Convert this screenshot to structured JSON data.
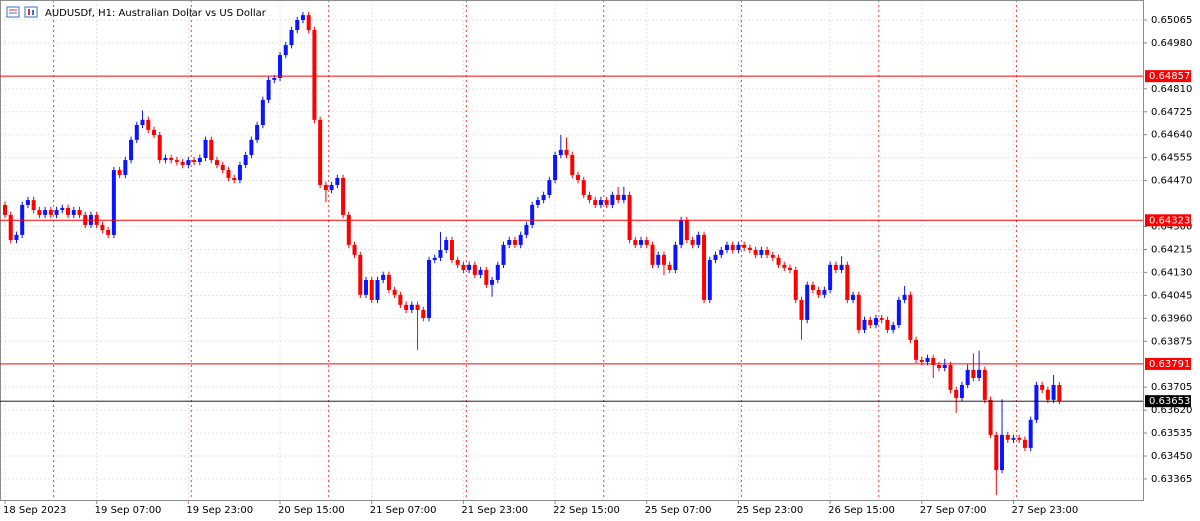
{
  "chart_data": {
    "type": "candlestick",
    "title": "AUDUSDf, H1:  Australian Dollar vs US Dollar",
    "up_color": "#0a14ff",
    "down_color": "#ff0000",
    "level_color": "#ff0000",
    "last_price_color": "#000000",
    "grid": true,
    "ylim": [
      0.63287,
      0.65139
    ],
    "yticks": [
      0.65065,
      {
        "value": 0.6498,
        "label": "0.64980"
      },
      {
        "value": 0.6481,
        "label": "0.64810"
      },
      0.64725,
      {
        "value": 0.6464,
        "label": "0.64640"
      },
      0.64555,
      {
        "value": 0.6447,
        "label": "0.64470"
      },
      {
        "value": 0.643,
        "label": "0.64300"
      },
      0.64215,
      {
        "value": 0.6413,
        "label": "0.64130"
      },
      0.64045,
      {
        "value": 0.6396,
        "label": "0.63960"
      },
      0.63875,
      0.63705,
      {
        "value": 0.6362,
        "label": "0.63620"
      },
      0.63535,
      {
        "value": 0.6345,
        "label": "0.63450"
      },
      0.63365
    ],
    "levels": [
      0.64857,
      0.64323,
      0.63791
    ],
    "last_price": 0.63653,
    "categories": [
      "18 Sep 2023",
      null,
      null,
      null,
      null,
      null,
      null,
      null,
      null,
      null,
      null,
      null,
      null,
      null,
      null,
      null,
      "19 Sep 07:00",
      null,
      null,
      null,
      null,
      null,
      null,
      null,
      null,
      null,
      null,
      null,
      null,
      null,
      null,
      null,
      "19 Sep 23:00",
      null,
      null,
      null,
      null,
      null,
      null,
      null,
      null,
      null,
      null,
      null,
      null,
      null,
      null,
      null,
      "20 Sep 15:00",
      null,
      null,
      null,
      null,
      null,
      null,
      null,
      null,
      null,
      null,
      null,
      null,
      null,
      null,
      null,
      "21 Sep 07:00",
      null,
      null,
      null,
      null,
      null,
      null,
      null,
      null,
      null,
      null,
      null,
      null,
      null,
      null,
      null,
      "21 Sep 23:00",
      null,
      null,
      null,
      null,
      null,
      null,
      null,
      null,
      null,
      null,
      null,
      null,
      null,
      null,
      null,
      "22 Sep 15:00",
      null,
      null,
      null,
      null,
      null,
      null,
      null,
      null,
      null,
      null,
      null,
      null,
      null,
      null,
      null,
      "25 Sep 07:00",
      null,
      null,
      null,
      null,
      null,
      null,
      null,
      null,
      null,
      null,
      null,
      null,
      null,
      null,
      null,
      "25 Sep 23:00",
      null,
      null,
      null,
      null,
      null,
      null,
      null,
      null,
      null,
      null,
      null,
      null,
      null,
      null,
      null,
      "26 Sep 15:00",
      null,
      null,
      null,
      null,
      null,
      null,
      null,
      null,
      null,
      null,
      null,
      null,
      null,
      null,
      null,
      "27 Sep 07:00",
      null,
      null,
      null,
      null,
      null,
      null,
      null,
      null,
      null,
      null,
      null,
      null,
      null,
      null,
      null,
      "27 Sep 23:00",
      null,
      null,
      null,
      null,
      null,
      null,
      null,
      null
    ],
    "candles": [
      [
        0.6438,
        0.64392,
        0.64331,
        0.64343
      ],
      [
        0.64343,
        0.64355,
        0.64238,
        0.6425
      ],
      [
        0.6425,
        0.64281,
        0.64238,
        0.64269
      ],
      [
        0.64269,
        0.64392,
        0.64257,
        0.6438
      ],
      [
        0.6438,
        0.6441,
        0.64368,
        0.64398
      ],
      [
        0.64398,
        0.6441,
        0.64349,
        0.64361
      ],
      [
        0.64361,
        0.64373,
        0.64331,
        0.64343
      ],
      [
        0.64343,
        0.64373,
        0.64331,
        0.64361
      ],
      [
        0.64361,
        0.64373,
        0.64331,
        0.64343
      ],
      [
        0.64343,
        0.64373,
        0.64331,
        0.64361
      ],
      [
        0.64361,
        0.64381,
        0.64349,
        0.64369
      ],
      [
        0.64369,
        0.64381,
        0.64331,
        0.64343
      ],
      [
        0.64343,
        0.64373,
        0.64331,
        0.64361
      ],
      [
        0.64361,
        0.64373,
        0.64331,
        0.64343
      ],
      [
        0.64343,
        0.64355,
        0.64294,
        0.64306
      ],
      [
        0.64306,
        0.64355,
        0.64294,
        0.64343
      ],
      [
        0.64343,
        0.64355,
        0.64294,
        0.64306
      ],
      [
        0.64306,
        0.64318,
        0.64275,
        0.64287
      ],
      [
        0.64287,
        0.64299,
        0.64257,
        0.64269
      ],
      [
        0.64269,
        0.64521,
        0.64257,
        0.64509
      ],
      [
        0.64509,
        0.64521,
        0.64479,
        0.64491
      ],
      [
        0.64491,
        0.64558,
        0.64479,
        0.64546
      ],
      [
        0.64546,
        0.64633,
        0.64534,
        0.64621
      ],
      [
        0.64621,
        0.64688,
        0.64609,
        0.64676
      ],
      [
        0.64676,
        0.6473,
        0.64664,
        0.64695
      ],
      [
        0.64695,
        0.64707,
        0.64646,
        0.64658
      ],
      [
        0.64658,
        0.6467,
        0.64627,
        0.64639
      ],
      [
        0.64639,
        0.64651,
        0.64534,
        0.64546
      ],
      [
        0.64546,
        0.64566,
        0.64534,
        0.64554
      ],
      [
        0.64554,
        0.64566,
        0.64534,
        0.64546
      ],
      [
        0.64546,
        0.64558,
        0.64527,
        0.64539
      ],
      [
        0.64539,
        0.64551,
        0.64516,
        0.64528
      ],
      [
        0.64528,
        0.64558,
        0.64516,
        0.64546
      ],
      [
        0.64546,
        0.64558,
        0.64527,
        0.64539
      ],
      [
        0.64539,
        0.64566,
        0.64527,
        0.64554
      ],
      [
        0.64554,
        0.64633,
        0.64542,
        0.64621
      ],
      [
        0.64621,
        0.64633,
        0.64534,
        0.64546
      ],
      [
        0.64546,
        0.64558,
        0.64516,
        0.64528
      ],
      [
        0.64528,
        0.6454,
        0.64497,
        0.64509
      ],
      [
        0.64509,
        0.64521,
        0.64468,
        0.6448
      ],
      [
        0.6448,
        0.64492,
        0.6446,
        0.64472
      ],
      [
        0.64472,
        0.6454,
        0.6446,
        0.64528
      ],
      [
        0.64528,
        0.64577,
        0.64516,
        0.64565
      ],
      [
        0.64565,
        0.64633,
        0.64553,
        0.64621
      ],
      [
        0.64621,
        0.64688,
        0.64609,
        0.64676
      ],
      [
        0.64676,
        0.64781,
        0.64664,
        0.64769
      ],
      [
        0.64769,
        0.64855,
        0.64757,
        0.64843
      ],
      [
        0.64843,
        0.64862,
        0.64831,
        0.6485
      ],
      [
        0.6485,
        0.64947,
        0.64838,
        0.64935
      ],
      [
        0.64935,
        0.64984,
        0.64923,
        0.64972
      ],
      [
        0.64972,
        0.6504,
        0.6496,
        0.65028
      ],
      [
        0.65028,
        0.65077,
        0.65016,
        0.65065
      ],
      [
        0.65065,
        0.65095,
        0.65053,
        0.65083
      ],
      [
        0.65083,
        0.65095,
        0.65016,
        0.65028
      ],
      [
        0.65028,
        0.6504,
        0.64683,
        0.64695
      ],
      [
        0.64695,
        0.64707,
        0.64442,
        0.64454
      ],
      [
        0.64454,
        0.64466,
        0.6439,
        0.64435
      ],
      [
        0.64435,
        0.64466,
        0.64423,
        0.64454
      ],
      [
        0.64454,
        0.64492,
        0.64442,
        0.6448
      ],
      [
        0.6448,
        0.64492,
        0.64331,
        0.64343
      ],
      [
        0.64343,
        0.64355,
        0.6422,
        0.64232
      ],
      [
        0.64232,
        0.64244,
        0.64183,
        0.64195
      ],
      [
        0.64195,
        0.64207,
        0.64035,
        0.64047
      ],
      [
        0.64047,
        0.64114,
        0.64035,
        0.64102
      ],
      [
        0.64102,
        0.64114,
        0.64016,
        0.64028
      ],
      [
        0.64028,
        0.64114,
        0.64016,
        0.64102
      ],
      [
        0.64102,
        0.64133,
        0.6409,
        0.64121
      ],
      [
        0.64121,
        0.64133,
        0.64053,
        0.64065
      ],
      [
        0.64065,
        0.64077,
        0.64035,
        0.64047
      ],
      [
        0.64047,
        0.64059,
        0.63998,
        0.6401
      ],
      [
        0.6401,
        0.64022,
        0.63979,
        0.63991
      ],
      [
        0.63991,
        0.64022,
        0.63979,
        0.6401
      ],
      [
        0.6401,
        0.64022,
        0.63843,
        0.63991
      ],
      [
        0.63991,
        0.64003,
        0.63949,
        0.63961
      ],
      [
        0.63961,
        0.64188,
        0.63949,
        0.64176
      ],
      [
        0.64176,
        0.64196,
        0.64164,
        0.64184
      ],
      [
        0.64184,
        0.6428,
        0.64172,
        0.64213
      ],
      [
        0.64213,
        0.64262,
        0.64201,
        0.6425
      ],
      [
        0.6425,
        0.64262,
        0.64164,
        0.64176
      ],
      [
        0.64176,
        0.64188,
        0.64146,
        0.64158
      ],
      [
        0.64158,
        0.6417,
        0.64127,
        0.64139
      ],
      [
        0.64139,
        0.6417,
        0.64127,
        0.64158
      ],
      [
        0.64158,
        0.6417,
        0.64109,
        0.64121
      ],
      [
        0.64121,
        0.64151,
        0.64109,
        0.64139
      ],
      [
        0.64139,
        0.64151,
        0.64072,
        0.64084
      ],
      [
        0.64084,
        0.64114,
        0.6404,
        0.64102
      ],
      [
        0.64102,
        0.6417,
        0.6409,
        0.64158
      ],
      [
        0.64158,
        0.64244,
        0.64146,
        0.64232
      ],
      [
        0.64232,
        0.64262,
        0.6422,
        0.6425
      ],
      [
        0.6425,
        0.64262,
        0.6422,
        0.64232
      ],
      [
        0.64232,
        0.64281,
        0.6422,
        0.64269
      ],
      [
        0.64269,
        0.64318,
        0.64257,
        0.64306
      ],
      [
        0.64306,
        0.64392,
        0.64294,
        0.6438
      ],
      [
        0.6438,
        0.6441,
        0.64368,
        0.64398
      ],
      [
        0.64398,
        0.64429,
        0.64386,
        0.64417
      ],
      [
        0.64417,
        0.64484,
        0.64405,
        0.64472
      ],
      [
        0.64472,
        0.64577,
        0.6446,
        0.64565
      ],
      [
        0.64565,
        0.64639,
        0.64553,
        0.64584
      ],
      [
        0.64584,
        0.6463,
        0.64553,
        0.64565
      ],
      [
        0.64565,
        0.64577,
        0.64479,
        0.64491
      ],
      [
        0.64491,
        0.64503,
        0.6446,
        0.64472
      ],
      [
        0.64472,
        0.64484,
        0.64405,
        0.64417
      ],
      [
        0.64417,
        0.64429,
        0.64386,
        0.64398
      ],
      [
        0.64398,
        0.6441,
        0.64368,
        0.6438
      ],
      [
        0.6438,
        0.6441,
        0.64368,
        0.64398
      ],
      [
        0.64398,
        0.6441,
        0.64368,
        0.6438
      ],
      [
        0.6438,
        0.64429,
        0.64368,
        0.64417
      ],
      [
        0.64417,
        0.64447,
        0.64386,
        0.64398
      ],
      [
        0.64398,
        0.64447,
        0.64386,
        0.64417
      ],
      [
        0.64417,
        0.64429,
        0.64238,
        0.6425
      ],
      [
        0.6425,
        0.64262,
        0.6422,
        0.64232
      ],
      [
        0.64232,
        0.64262,
        0.6422,
        0.6425
      ],
      [
        0.6425,
        0.64262,
        0.6422,
        0.64232
      ],
      [
        0.64232,
        0.64244,
        0.64146,
        0.64158
      ],
      [
        0.64158,
        0.64207,
        0.64146,
        0.64195
      ],
      [
        0.64195,
        0.64207,
        0.6412,
        0.64158
      ],
      [
        0.64158,
        0.6417,
        0.64127,
        0.64139
      ],
      [
        0.64139,
        0.64244,
        0.64127,
        0.64232
      ],
      [
        0.64232,
        0.64336,
        0.6422,
        0.64324
      ],
      [
        0.64324,
        0.64336,
        0.64238,
        0.6425
      ],
      [
        0.6425,
        0.64262,
        0.6422,
        0.64232
      ],
      [
        0.64232,
        0.64281,
        0.6422,
        0.64269
      ],
      [
        0.64269,
        0.64281,
        0.64016,
        0.64028
      ],
      [
        0.64028,
        0.64188,
        0.64016,
        0.64176
      ],
      [
        0.64176,
        0.64207,
        0.64164,
        0.64195
      ],
      [
        0.64195,
        0.64225,
        0.64183,
        0.64213
      ],
      [
        0.64213,
        0.64244,
        0.64201,
        0.64232
      ],
      [
        0.64232,
        0.64244,
        0.64201,
        0.64213
      ],
      [
        0.64213,
        0.64244,
        0.64201,
        0.64232
      ],
      [
        0.64232,
        0.64244,
        0.64209,
        0.64221
      ],
      [
        0.64221,
        0.64233,
        0.64201,
        0.64213
      ],
      [
        0.64213,
        0.64225,
        0.64183,
        0.64195
      ],
      [
        0.64195,
        0.64225,
        0.64183,
        0.64213
      ],
      [
        0.64213,
        0.64225,
        0.64183,
        0.64195
      ],
      [
        0.64195,
        0.64207,
        0.64172,
        0.64184
      ],
      [
        0.64184,
        0.64196,
        0.64146,
        0.64158
      ],
      [
        0.64158,
        0.6417,
        0.64135,
        0.64147
      ],
      [
        0.64147,
        0.64159,
        0.64127,
        0.64139
      ],
      [
        0.64139,
        0.64151,
        0.64016,
        0.64028
      ],
      [
        0.64028,
        0.6404,
        0.6388,
        0.63954
      ],
      [
        0.63954,
        0.64096,
        0.63942,
        0.64084
      ],
      [
        0.64084,
        0.64096,
        0.64053,
        0.64065
      ],
      [
        0.64065,
        0.64077,
        0.64035,
        0.64047
      ],
      [
        0.64047,
        0.64077,
        0.64035,
        0.64065
      ],
      [
        0.64065,
        0.6417,
        0.64053,
        0.64158
      ],
      [
        0.64158,
        0.6417,
        0.64127,
        0.64139
      ],
      [
        0.64139,
        0.6419,
        0.64127,
        0.64158
      ],
      [
        0.64158,
        0.6417,
        0.64016,
        0.64028
      ],
      [
        0.64028,
        0.64059,
        0.64016,
        0.64047
      ],
      [
        0.64047,
        0.64059,
        0.63905,
        0.63917
      ],
      [
        0.63917,
        0.63966,
        0.63905,
        0.63954
      ],
      [
        0.63954,
        0.63966,
        0.63923,
        0.63935
      ],
      [
        0.63935,
        0.63973,
        0.63923,
        0.63961
      ],
      [
        0.63961,
        0.63973,
        0.63942,
        0.63954
      ],
      [
        0.63954,
        0.63966,
        0.63905,
        0.63917
      ],
      [
        0.63917,
        0.63947,
        0.63905,
        0.63935
      ],
      [
        0.63935,
        0.6404,
        0.63923,
        0.64028
      ],
      [
        0.64028,
        0.6408,
        0.64016,
        0.64047
      ],
      [
        0.64047,
        0.64059,
        0.63868,
        0.6388
      ],
      [
        0.6388,
        0.63892,
        0.63794,
        0.63806
      ],
      [
        0.63806,
        0.63818,
        0.63786,
        0.63798
      ],
      [
        0.63798,
        0.63825,
        0.63786,
        0.63813
      ],
      [
        0.63813,
        0.63825,
        0.63739,
        0.63787
      ],
      [
        0.63787,
        0.63799,
        0.63764,
        0.63776
      ],
      [
        0.63776,
        0.6381,
        0.63764,
        0.63787
      ],
      [
        0.63787,
        0.63799,
        0.63683,
        0.63695
      ],
      [
        0.63695,
        0.63707,
        0.6361,
        0.63665
      ],
      [
        0.63665,
        0.63725,
        0.63653,
        0.63713
      ],
      [
        0.63713,
        0.6379,
        0.63701,
        0.63769
      ],
      [
        0.63769,
        0.6383,
        0.63727,
        0.63739
      ],
      [
        0.63739,
        0.6384,
        0.63727,
        0.63769
      ],
      [
        0.63769,
        0.63781,
        0.63646,
        0.63658
      ],
      [
        0.63658,
        0.6367,
        0.63516,
        0.63528
      ],
      [
        0.63528,
        0.6354,
        0.63306,
        0.63398
      ],
      [
        0.63398,
        0.6366,
        0.63386,
        0.63528
      ],
      [
        0.63528,
        0.6354,
        0.63498,
        0.6351
      ],
      [
        0.6351,
        0.63529,
        0.63498,
        0.63517
      ],
      [
        0.63517,
        0.63529,
        0.63498,
        0.6351
      ],
      [
        0.6351,
        0.63522,
        0.63468,
        0.6348
      ],
      [
        0.6348,
        0.63596,
        0.63468,
        0.63584
      ],
      [
        0.63584,
        0.63725,
        0.63572,
        0.63713
      ],
      [
        0.63713,
        0.63725,
        0.63683,
        0.63695
      ],
      [
        0.63695,
        0.63707,
        0.63646,
        0.63658
      ],
      [
        0.63658,
        0.6375,
        0.63646,
        0.63713
      ],
      [
        0.63713,
        0.63725,
        0.63641,
        0.63653
      ]
    ]
  }
}
